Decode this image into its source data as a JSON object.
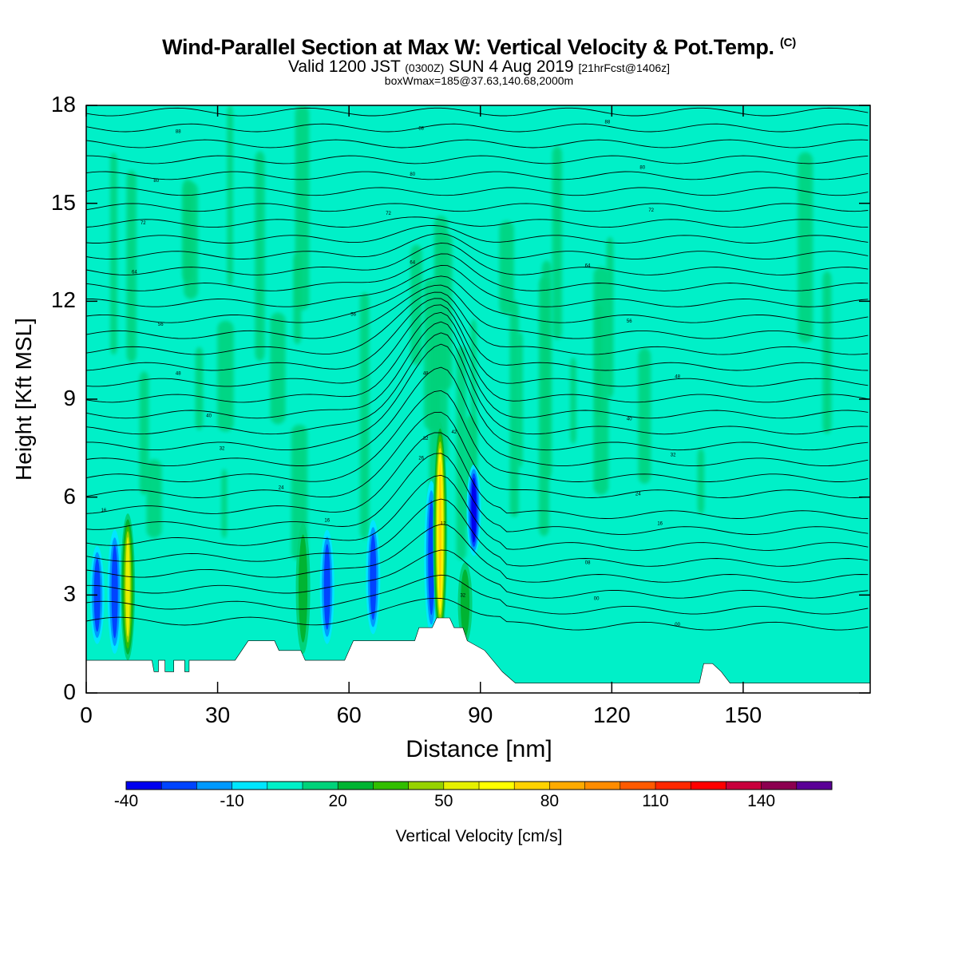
{
  "title": {
    "main": "Wind-Parallel Section at Max W: Vertical Velocity & Pot.Temp.",
    "copyright": "(C)",
    "valid_prefix": "Valid 1200 JST",
    "valid_utc": "(0300Z)",
    "valid_date": "SUN 4 Aug 2019",
    "forecast": "[21hrFcst@1406z]",
    "box_info": "boxWmax=185@37.63,140.68,2000m"
  },
  "chart_data": {
    "type": "heatmap",
    "xlabel": "Distance [nm]",
    "ylabel": "Height [Kft MSL]",
    "xlim": [
      0,
      179
    ],
    "ylim": [
      0,
      18
    ],
    "x_ticks": [
      0,
      30,
      60,
      90,
      120,
      150
    ],
    "y_ticks": [
      0,
      3,
      6,
      9,
      12,
      15,
      18
    ],
    "field": "Vertical Velocity",
    "colorbar": {
      "label": "Vertical Velocity [cm/s]",
      "levels": [
        -40,
        -30,
        -20,
        -10,
        0,
        10,
        20,
        30,
        40,
        50,
        60,
        70,
        80,
        90,
        100,
        110,
        120,
        130,
        140,
        150
      ],
      "tick_labels": [
        -40,
        -10,
        20,
        50,
        80,
        110,
        140
      ],
      "colors": [
        "#0000ee",
        "#0044ff",
        "#0099ff",
        "#00e6ff",
        "#00f0c8",
        "#00d27a",
        "#00b432",
        "#32be00",
        "#96d200",
        "#e6f000",
        "#ffff00",
        "#ffd200",
        "#ffaa00",
        "#ff8c00",
        "#ff5a00",
        "#ff2800",
        "#ff0000",
        "#c8003c",
        "#8c0050",
        "#5a0096"
      ]
    },
    "background_velocity_cm_s": 0,
    "updrafts": [
      {
        "x_nm": 9.5,
        "bottom_kft": 1.0,
        "top_kft": 5.5,
        "max_w_cm_s": 55
      },
      {
        "x_nm": 49.5,
        "bottom_kft": 1.2,
        "top_kft": 5.2,
        "max_w_cm_s": 25
      },
      {
        "x_nm": 80.8,
        "bottom_kft": 1.6,
        "top_kft": 8.3,
        "max_w_cm_s": 70
      },
      {
        "x_nm": 86.5,
        "bottom_kft": 1.5,
        "top_kft": 4.0,
        "max_w_cm_s": 20
      }
    ],
    "downdrafts": [
      {
        "x_nm": 2.5,
        "bottom_kft": 1.5,
        "top_kft": 4.5,
        "min_w_cm_s": -30
      },
      {
        "x_nm": 6.5,
        "bottom_kft": 1.2,
        "top_kft": 5.0,
        "min_w_cm_s": -35
      },
      {
        "x_nm": 55.0,
        "bottom_kft": 1.5,
        "top_kft": 5.0,
        "min_w_cm_s": -35
      },
      {
        "x_nm": 65.5,
        "bottom_kft": 1.8,
        "top_kft": 5.3,
        "min_w_cm_s": -30
      },
      {
        "x_nm": 78.8,
        "bottom_kft": 1.8,
        "top_kft": 6.5,
        "min_w_cm_s": -30
      },
      {
        "x_nm": 88.5,
        "bottom_kft": 4.2,
        "top_kft": 7.0,
        "min_w_cm_s": -40
      }
    ],
    "terrain_kft": [
      [
        0,
        1.0
      ],
      [
        15,
        1.0
      ],
      [
        15.5,
        0.65
      ],
      [
        16.5,
        0.65
      ],
      [
        16.5,
        1.0
      ],
      [
        18,
        1.0
      ],
      [
        18,
        0.65
      ],
      [
        20,
        0.65
      ],
      [
        20,
        1.0
      ],
      [
        22.5,
        1.0
      ],
      [
        22.5,
        0.65
      ],
      [
        23.5,
        0.65
      ],
      [
        23.5,
        1.0
      ],
      [
        34,
        1.0
      ],
      [
        37,
        1.6
      ],
      [
        43,
        1.6
      ],
      [
        44,
        1.3
      ],
      [
        49,
        1.3
      ],
      [
        50,
        1.0
      ],
      [
        59,
        1.0
      ],
      [
        61,
        1.6
      ],
      [
        75,
        1.6
      ],
      [
        76,
        2.0
      ],
      [
        79,
        2.0
      ],
      [
        80,
        2.3
      ],
      [
        83,
        2.3
      ],
      [
        84,
        2.0
      ],
      [
        86,
        2.0
      ],
      [
        87,
        1.6
      ],
      [
        91,
        1.3
      ],
      [
        95,
        0.65
      ],
      [
        98,
        0.3
      ],
      [
        140,
        0.3
      ],
      [
        141,
        0.9
      ],
      [
        143,
        0.9
      ],
      [
        145,
        0.65
      ],
      [
        147,
        0.3
      ],
      [
        179,
        0.3
      ]
    ],
    "theta_contours_K": {
      "count": 33,
      "ridge_x_nm": 81.0,
      "labels": [
        {
          "x_nm": 21,
          "y_kft": 17.2,
          "text": "88"
        },
        {
          "x_nm": 76.5,
          "y_kft": 17.3,
          "text": "88"
        },
        {
          "x_nm": 119,
          "y_kft": 17.5,
          "text": "88"
        },
        {
          "x_nm": 16,
          "y_kft": 15.7,
          "text": "80"
        },
        {
          "x_nm": 74.5,
          "y_kft": 15.9,
          "text": "80"
        },
        {
          "x_nm": 127,
          "y_kft": 16.1,
          "text": "80"
        },
        {
          "x_nm": 13,
          "y_kft": 14.4,
          "text": "72"
        },
        {
          "x_nm": 69,
          "y_kft": 14.7,
          "text": "72"
        },
        {
          "x_nm": 129,
          "y_kft": 14.8,
          "text": "72"
        },
        {
          "x_nm": 11,
          "y_kft": 12.9,
          "text": "64"
        },
        {
          "x_nm": 74.5,
          "y_kft": 13.2,
          "text": "64"
        },
        {
          "x_nm": 114.5,
          "y_kft": 13.1,
          "text": "64"
        },
        {
          "x_nm": 17,
          "y_kft": 11.3,
          "text": "56"
        },
        {
          "x_nm": 61,
          "y_kft": 11.6,
          "text": "56"
        },
        {
          "x_nm": 124,
          "y_kft": 11.4,
          "text": "56"
        },
        {
          "x_nm": 21,
          "y_kft": 9.8,
          "text": "48"
        },
        {
          "x_nm": 77.5,
          "y_kft": 9.8,
          "text": "48"
        },
        {
          "x_nm": 135,
          "y_kft": 9.7,
          "text": "48"
        },
        {
          "x_nm": 28,
          "y_kft": 8.5,
          "text": "40"
        },
        {
          "x_nm": 124,
          "y_kft": 8.4,
          "text": "40"
        },
        {
          "x_nm": 31,
          "y_kft": 7.5,
          "text": "32"
        },
        {
          "x_nm": 77.5,
          "y_kft": 7.8,
          "text": "32"
        },
        {
          "x_nm": 134,
          "y_kft": 7.3,
          "text": "32"
        },
        {
          "x_nm": 84,
          "y_kft": 8.0,
          "text": "42"
        },
        {
          "x_nm": 76.5,
          "y_kft": 7.2,
          "text": "26"
        },
        {
          "x_nm": 44.5,
          "y_kft": 6.3,
          "text": "24"
        },
        {
          "x_nm": 126,
          "y_kft": 6.1,
          "text": "24"
        },
        {
          "x_nm": 4,
          "y_kft": 5.6,
          "text": "16"
        },
        {
          "x_nm": 55,
          "y_kft": 5.3,
          "text": "16"
        },
        {
          "x_nm": 131,
          "y_kft": 5.2,
          "text": "16"
        },
        {
          "x_nm": 81.5,
          "y_kft": 5.2,
          "text": "12"
        },
        {
          "x_nm": 114.5,
          "y_kft": 4.0,
          "text": "08"
        },
        {
          "x_nm": 116.5,
          "y_kft": 2.9,
          "text": "00"
        },
        {
          "x_nm": 135,
          "y_kft": 2.1,
          "text": "00"
        },
        {
          "x_nm": 86,
          "y_kft": 3.0,
          "text": "32"
        }
      ]
    }
  }
}
